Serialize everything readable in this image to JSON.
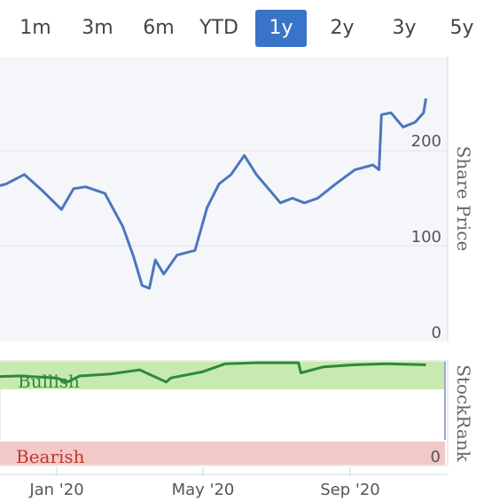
{
  "range_tabs": {
    "items": [
      "1m",
      "3m",
      "6m",
      "YTD",
      "1y",
      "2y",
      "3y",
      "5y"
    ],
    "active": "1y",
    "active_color": "#3a74c8"
  },
  "chart_data": [
    {
      "type": "line",
      "ylabel": "Share Price",
      "ylim": [
        0,
        270
      ],
      "y_ticks": [
        "0",
        "100",
        "200"
      ],
      "x_ticks": [
        "Jan '20",
        "May '20",
        "Sep '20"
      ],
      "grid": true,
      "series": [
        {
          "color": "#4a77bd",
          "x": [
            "2019-11-05",
            "2019-11-20",
            "2019-12-05",
            "2019-12-20",
            "2020-01-05",
            "2020-01-15",
            "2020-01-25",
            "2020-02-10",
            "2020-02-25",
            "2020-03-05",
            "2020-03-12",
            "2020-03-18",
            "2020-03-23",
            "2020-03-30",
            "2020-04-10",
            "2020-04-25",
            "2020-05-05",
            "2020-05-15",
            "2020-05-25",
            "2020-06-05",
            "2020-06-15",
            "2020-06-25",
            "2020-07-05",
            "2020-07-15",
            "2020-07-25",
            "2020-08-05",
            "2020-08-20",
            "2020-09-05",
            "2020-09-20",
            "2020-09-25",
            "2020-09-27",
            "2020-10-05",
            "2020-10-15",
            "2020-10-25",
            "2020-11-01",
            "2020-11-03"
          ],
          "values": [
            160,
            165,
            175,
            158,
            138,
            160,
            162,
            155,
            120,
            88,
            58,
            55,
            85,
            70,
            90,
            95,
            140,
            165,
            175,
            195,
            175,
            160,
            145,
            150,
            145,
            150,
            165,
            180,
            185,
            180,
            238,
            240,
            225,
            230,
            240,
            255
          ]
        }
      ]
    },
    {
      "type": "line",
      "ylabel": "StockRank",
      "y_ticks": [
        "0"
      ],
      "bands": [
        "Bullish",
        "Bearish"
      ],
      "band_colors": {
        "Bullish": "#c8eab0",
        "Bearish": "#f2c8c8"
      },
      "x_ticks": [
        "Jan '20",
        "May '20",
        "Sep '20"
      ],
      "series": [
        {
          "color": "#2e8a3a",
          "x": [
            "2019-11-05",
            "2019-12-01",
            "2020-01-01",
            "2020-01-10",
            "2020-01-20",
            "2020-02-15",
            "2020-03-10",
            "2020-04-01",
            "2020-04-05",
            "2020-05-01",
            "2020-05-20",
            "2020-06-15",
            "2020-07-20",
            "2020-07-22",
            "2020-08-10",
            "2020-09-05",
            "2020-10-01",
            "2020-11-03"
          ],
          "values": [
            85,
            86,
            84,
            80,
            86,
            88,
            92,
            80,
            84,
            90,
            98,
            99,
            99,
            89,
            95,
            97,
            98,
            97
          ]
        }
      ]
    }
  ]
}
